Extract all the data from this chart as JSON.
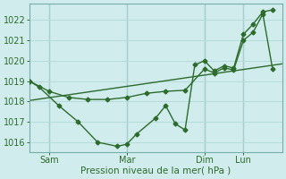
{
  "xlabel": "Pression niveau de la mer( hPa )",
  "bg_color": "#d0ecec",
  "line_color": "#2d6b2d",
  "grid_color": "#b0d8d8",
  "vline_color": "#7aacac",
  "ylim": [
    1015.5,
    1022.8
  ],
  "xlim": [
    0,
    156
  ],
  "xtick_positions": [
    12,
    60,
    108,
    132
  ],
  "xtick_labels": [
    "Sam",
    "Mar",
    "Dim",
    "Lun"
  ],
  "ytick_positions": [
    1016,
    1017,
    1018,
    1019,
    1020,
    1021,
    1022
  ],
  "ytick_labels": [
    "1016",
    "1017",
    "1018",
    "1019",
    "1020",
    "1021",
    "1022"
  ],
  "vline_positions": [
    12,
    60,
    108,
    132
  ],
  "line1_x": [
    0,
    6,
    18,
    30,
    42,
    54,
    60,
    66,
    78,
    84,
    90,
    96,
    102,
    108,
    114,
    120,
    126,
    132,
    138,
    144,
    150
  ],
  "line1_y": [
    1019.0,
    1018.7,
    1017.8,
    1017.0,
    1016.0,
    1015.8,
    1015.9,
    1016.4,
    1017.2,
    1017.8,
    1016.9,
    1016.6,
    1019.8,
    1020.0,
    1019.5,
    1019.75,
    1019.65,
    1021.3,
    1021.8,
    1022.4,
    1022.5
  ],
  "line2_x": [
    0,
    12,
    24,
    36,
    48,
    60,
    72,
    84,
    96,
    108,
    114,
    120,
    126,
    132,
    138,
    144,
    150
  ],
  "line2_y": [
    1019.0,
    1018.5,
    1018.2,
    1018.1,
    1018.1,
    1018.2,
    1018.4,
    1018.5,
    1018.55,
    1019.6,
    1019.4,
    1019.65,
    1019.55,
    1021.0,
    1021.4,
    1022.3,
    1019.6
  ],
  "line3_x": [
    0,
    156
  ],
  "line3_y": [
    1018.05,
    1019.85
  ],
  "marker_size": 2.5,
  "line_width": 1.0,
  "tick_fontsize": 7,
  "xlabel_fontsize": 7.5
}
